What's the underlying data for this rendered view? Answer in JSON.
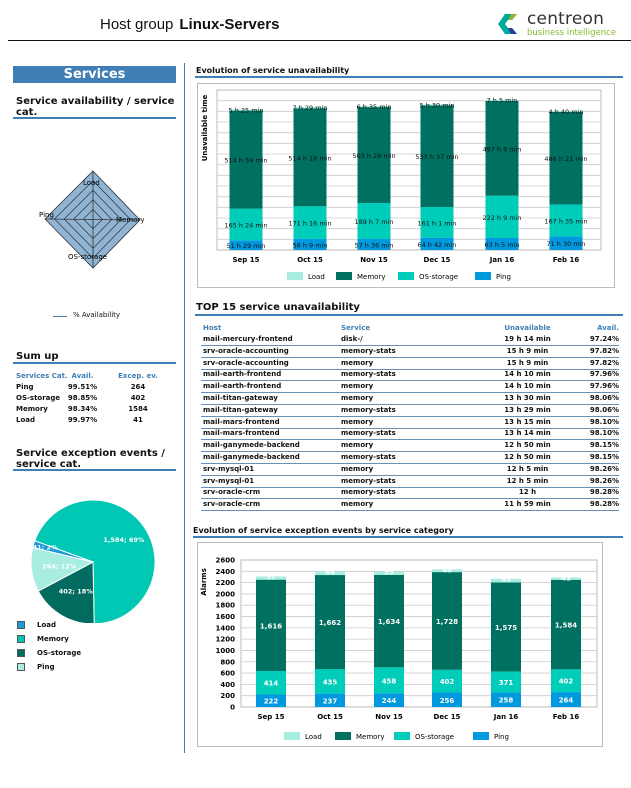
{
  "header": {
    "prefix": "Host group",
    "group": "Linux-Servers",
    "logo_name": "centreon",
    "logo_sub": "business intelligence"
  },
  "left": {
    "banner": "Services",
    "radar": {
      "title": "Service availability / service cat.",
      "axes": [
        "Load",
        "Memory",
        "OS-storage",
        "Ping"
      ],
      "legend": "% Availability",
      "color": "#8fb4d4"
    },
    "sumup": {
      "title": "Sum up",
      "headers": [
        "Services Cat.",
        "Avail.",
        "Excep. ev."
      ],
      "rows": [
        [
          "Ping",
          "99.51%",
          "264"
        ],
        [
          "OS-storage",
          "98.85%",
          "402"
        ],
        [
          "Memory",
          "98.34%",
          "1584"
        ],
        [
          "Load",
          "99.97%",
          "41"
        ]
      ]
    },
    "pie": {
      "title": "Service exception events / service cat."
    }
  },
  "table": {
    "title": "TOP 15 service unavailability",
    "headers": [
      "Host",
      "Service",
      "Unavailable",
      "Avail."
    ],
    "rows": [
      [
        "mail-mercury-frontend",
        "disk-/",
        "19 h 14 min",
        "97.24%"
      ],
      [
        "srv-oracle-accounting",
        "memory-stats",
        "15 h 9 min",
        "97.82%"
      ],
      [
        "srv-oracle-accounting",
        "memory",
        "15 h 9 min",
        "97.82%"
      ],
      [
        "mail-earth-frontend",
        "memory-stats",
        "14 h 10 min",
        "97.96%"
      ],
      [
        "mail-earth-frontend",
        "memory",
        "14 h 10 min",
        "97.96%"
      ],
      [
        "mail-titan-gateway",
        "memory",
        "13 h 30 min",
        "98.06%"
      ],
      [
        "mail-titan-gateway",
        "memory-stats",
        "13 h 29 min",
        "98.06%"
      ],
      [
        "mail-mars-frontend",
        "memory",
        "13 h 15 min",
        "98.10%"
      ],
      [
        "mail-mars-frontend",
        "memory-stats",
        "13 h 14 min",
        "98.10%"
      ],
      [
        "mail-ganymede-backend",
        "memory",
        "12 h 50 min",
        "98.15%"
      ],
      [
        "mail-ganymede-backend",
        "memory-stats",
        "12 h 50 min",
        "98.15%"
      ],
      [
        "srv-mysql-01",
        "memory",
        "12 h 5 min",
        "98.26%"
      ],
      [
        "srv-mysql-01",
        "memory-stats",
        "12 h 5 min",
        "98.26%"
      ],
      [
        "srv-oracle-crm",
        "memory-stats",
        "12 h",
        "98.28%"
      ],
      [
        "srv-oracle-crm",
        "memory",
        "11 h 59 min",
        "98.28%"
      ]
    ]
  },
  "chart_data": [
    {
      "type": "bar",
      "stacked": true,
      "title": "Evolution of service unavailability",
      "ylabel": "Unavailable time",
      "grid": true,
      "legend": "bottom",
      "categories": [
        "Sep 15",
        "Oct 15",
        "Nov 15",
        "Dec 15",
        "Jan 16",
        "Feb 16"
      ],
      "series": [
        {
          "name": "Ping",
          "color": "#0099dd",
          "values": [
            51.48,
            58.15,
            57.6,
            64.7,
            63.08,
            71.5
          ],
          "labels": [
            "51 h 29 min",
            "58 h 9 min",
            "57 h 36 min",
            "64 h 42 min",
            "63 h 5 min",
            "71 h 30 min"
          ]
        },
        {
          "name": "OS-storage",
          "color": "#00cdb9",
          "values": [
            165.4,
            171.27,
            189.12,
            161.02,
            222.15,
            167.58
          ],
          "labels": [
            "165 h 24 min",
            "171 h 16 min",
            "189 h 7 min",
            "161 h 1 min",
            "222 h 9 min",
            "167 h 35 min"
          ]
        },
        {
          "name": "Memory",
          "color": "#007060",
          "values": [
            514.98,
            514.3,
            503.47,
            533.62,
            497.1,
            486.35
          ],
          "labels": [
            "514 h 59 min",
            "514 h 18 min",
            "503 h 28 min",
            "533 h 37 min",
            "497 h 6 min",
            "486 h 21 min"
          ]
        },
        {
          "name": "Load",
          "color": "#a8ede0",
          "values": [
            5.42,
            7.48,
            6.58,
            5.5,
            7.08,
            4.67
          ],
          "labels": [
            "5 h 25 min",
            "7 h 29 min",
            "6 h 35 min",
            "5 h 30 min",
            "7 h 5 min",
            "4 h 40 min"
          ]
        }
      ],
      "legend_order": [
        "Load",
        "Memory",
        "OS-storage",
        "Ping"
      ]
    },
    {
      "type": "bar",
      "stacked": true,
      "title": "Evolution of service exception events by service category",
      "ylabel": "Alarms",
      "ylim": [
        0,
        2600
      ],
      "yticks": [
        0,
        200,
        400,
        600,
        800,
        1000,
        1200,
        1400,
        1600,
        1800,
        2000,
        2200,
        2400,
        2600
      ],
      "grid": true,
      "legend": "bottom",
      "categories": [
        "Sep 15",
        "Oct 15",
        "Nov 15",
        "Dec 15",
        "Jan 16",
        "Feb 16"
      ],
      "series": [
        {
          "name": "Ping",
          "color": "#0099dd",
          "values": [
            222,
            237,
            244,
            256,
            258,
            264
          ]
        },
        {
          "name": "OS-storage",
          "color": "#00cdb9",
          "values": [
            414,
            435,
            458,
            402,
            371,
            402
          ]
        },
        {
          "name": "Memory",
          "color": "#007060",
          "values": [
            1616,
            1662,
            1634,
            1728,
            1575,
            1584
          ]
        },
        {
          "name": "Load",
          "color": "#a8ede0",
          "values": [
            57,
            64,
            59,
            48,
            65,
            41
          ]
        }
      ],
      "legend_order": [
        "Load",
        "Memory",
        "OS-storage",
        "Ping"
      ]
    },
    {
      "type": "pie",
      "title": "Service exception events / service cat.",
      "legend": "bottom-left",
      "slices": [
        {
          "name": "Memory",
          "value": 1584,
          "label": "1,584; 69%",
          "color": "#00c8b4"
        },
        {
          "name": "OS-storage",
          "value": 402,
          "label": "402; 18%",
          "color": "#006b5e"
        },
        {
          "name": "Ping",
          "value": 264,
          "label": "264; 12%",
          "color": "#a8ede0"
        },
        {
          "name": "Load",
          "value": 41,
          "label": "41; 2%",
          "color": "#1a9ad6"
        }
      ],
      "legend_order": [
        "Load",
        "Memory",
        "OS-storage",
        "Ping"
      ]
    }
  ]
}
